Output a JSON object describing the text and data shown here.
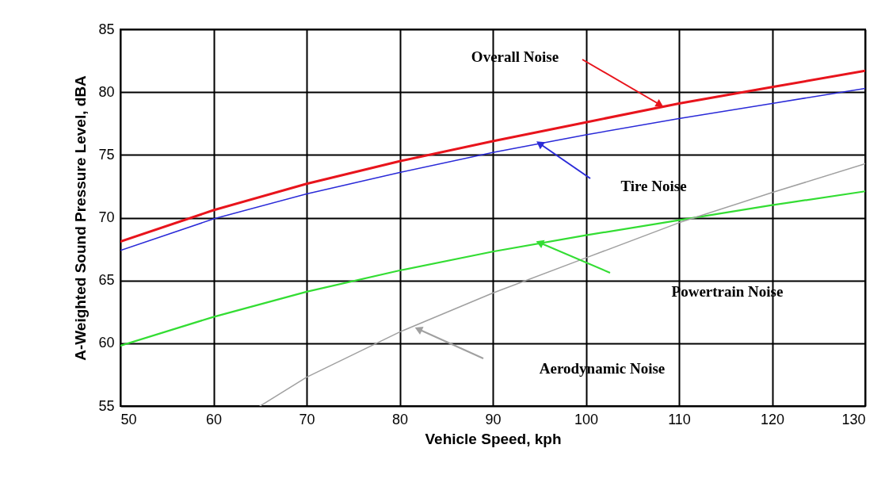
{
  "chart_data": {
    "type": "line",
    "xlabel": "Vehicle Speed, kph",
    "ylabel": "A-Weighted Sound Pressure Level, dBA",
    "x": [
      50,
      60,
      70,
      80,
      90,
      100,
      110,
      120,
      130
    ],
    "series": [
      {
        "color": "#e8141c",
        "values": [
          68.1,
          70.6,
          72.7,
          74.5,
          76.1,
          77.6,
          79.1,
          80.4,
          81.7
        ]
      },
      {
        "color": "#2a2ad8",
        "values": [
          67.4,
          69.9,
          71.9,
          73.6,
          75.2,
          76.6,
          77.9,
          79.1,
          80.3
        ]
      },
      {
        "color": "#33dd33",
        "values": [
          59.8,
          62.1,
          64.1,
          65.8,
          67.3,
          68.6,
          69.8,
          71.0,
          72.1
        ]
      },
      {
        "color": "#a0a0a0",
        "x": [
          65,
          70,
          80,
          90,
          100,
          110,
          120,
          130
        ],
        "values": [
          55,
          57.3,
          60.9,
          64,
          66.8,
          69.6,
          72.0,
          74.3
        ]
      }
    ],
    "annotations": [
      "Overall Noise",
      "Tire Noise",
      "Powertrain Noise",
      "Aerodynamic Noise"
    ],
    "xlim": [
      50,
      130
    ],
    "ylim": [
      55,
      85
    ],
    "xticks": [
      50,
      60,
      70,
      80,
      90,
      100,
      110,
      120,
      130
    ],
    "yticks": [
      55,
      60,
      65,
      70,
      75,
      80,
      85
    ],
    "grid": true,
    "marker": "none",
    "line_style": "solid"
  }
}
